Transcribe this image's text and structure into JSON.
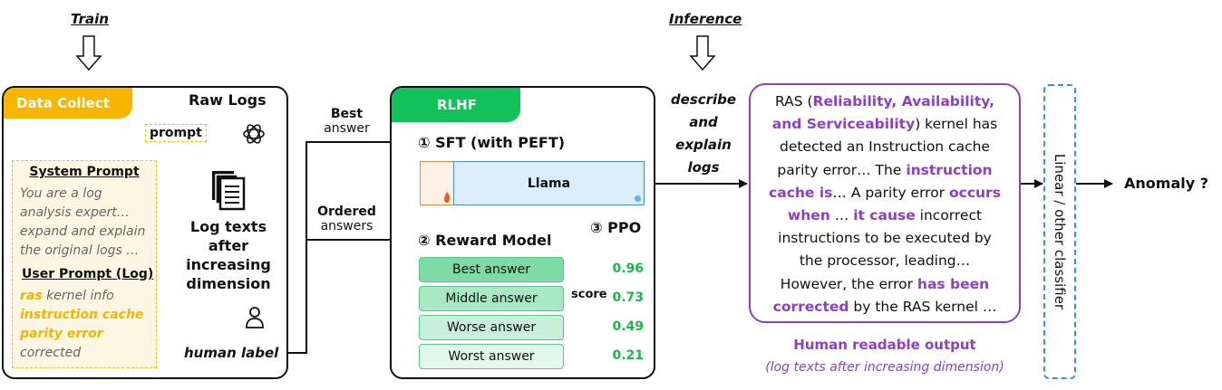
{
  "phases": {
    "train": "Train",
    "inference": "Inference"
  },
  "data_collect": {
    "tab": "Data Collect",
    "raw_logs": "Raw Logs",
    "prompt": "prompt",
    "system_prompt_title": "System Prompt",
    "system_prompt_lines": [
      "You are a log",
      "analysis expert…",
      "expand and explain",
      "the original logs …"
    ],
    "user_prompt_title": "User Prompt (Log)",
    "user_line1_hl": "ras",
    "user_line1_rest": " kernel info",
    "user_line2": "instruction cache",
    "user_line3": "parity error",
    "user_line4": "corrected",
    "log_texts_lines": [
      "Log texts",
      "after",
      "increasing",
      "dimension"
    ],
    "human_label": "human label"
  },
  "arrows": {
    "best_line1": "Best",
    "best_line2": "answer",
    "ordered_line1": "Ordered",
    "ordered_line2": "answers",
    "inference_lines": [
      "describe",
      "and",
      "explain",
      "logs"
    ]
  },
  "rlhf": {
    "tab": "RLHF",
    "sft": "① SFT (with PEFT)",
    "llama": "Llama",
    "reward_model": "② Reward Model",
    "ppo": "③ PPO",
    "score": "score",
    "answers": [
      {
        "label": "Best answer",
        "score": "0.96"
      },
      {
        "label": "Middle answer",
        "score": "0.73"
      },
      {
        "label": "Worse answer",
        "score": "0.49"
      },
      {
        "label": "Worst answer",
        "score": "0.21"
      }
    ]
  },
  "output": {
    "l1_a": "RAS (",
    "l1_b": "Reliability, Availability,",
    "l2_a": "and Serviceability",
    "l2_b": ") kernel has",
    "l3": "detected an Instruction cache",
    "l4_a": "parity error… The ",
    "l4_b": "instruction",
    "l5_a": "cache is",
    "l5_b": "… A parity error ",
    "l5_c": "occurs",
    "l6_a": "when",
    "l6_b": " … ",
    "l6_c": "it cause",
    "l6_d": " incorrect",
    "l7": "instructions to be executed by",
    "l8": "the processor, leading…",
    "l9_a": "However, the error ",
    "l9_b": "has been",
    "l10_a": "corrected",
    "l10_b": " by the RAS kernel …",
    "caption1": "Human readable output",
    "caption2": "(log texts after increasing dimension)"
  },
  "classifier": {
    "label": "Linear / other classifier"
  },
  "result": {
    "label": "Anomaly ?"
  },
  "colors": {
    "data_collect_tab": "#f7b500",
    "rlhf_tab": "#12c15a",
    "llama_fill": "#dcedf9",
    "llama_border": "#4a8fd0",
    "peft_border": "#ee8a3a",
    "output_border": "#8e3fc8",
    "classifier_border": "#3c8fe6",
    "prompt_border": "#f7c200",
    "prompt_fill": "#fdf6e3",
    "answer_fills": [
      "#7edba6",
      "#a9e8c4",
      "#c8f0d8",
      "#e3f7ea"
    ]
  }
}
